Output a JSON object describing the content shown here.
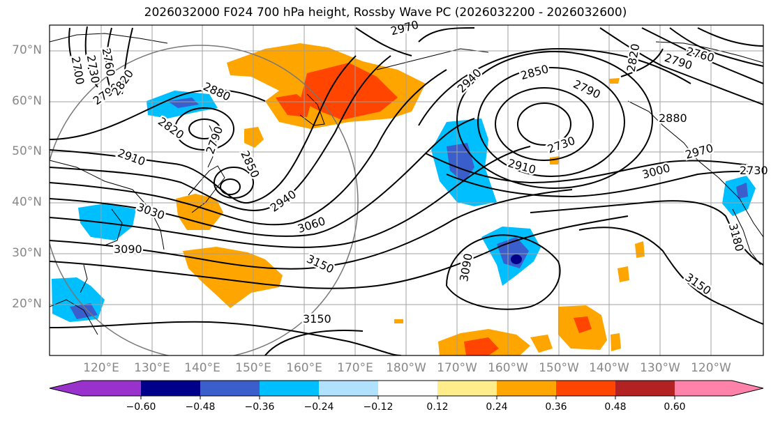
{
  "title": "2026032000 F024 700 hPa height, Rossby Wave PC (2026032200 - 2026032600)",
  "latitude_labels": [
    "70°N",
    "60°N",
    "50°N",
    "40°N",
    "30°N",
    "20°N"
  ],
  "longitude_labels": [
    "120°E",
    "130°E",
    "140°E",
    "150°E",
    "160°E",
    "170°E",
    "180°W",
    "170°W",
    "160°W",
    "150°W",
    "140°W",
    "130°W",
    "120°W"
  ],
  "contour_labels": [
    "2700",
    "2730",
    "2760",
    "2790",
    "2820",
    "2880",
    "2820",
    "2790",
    "2850",
    "2910",
    "2940",
    "3030",
    "3060",
    "3090",
    "3150",
    "3150",
    "2970",
    "2940",
    "2850",
    "2790",
    "2730",
    "2910",
    "2880",
    "3000",
    "2970",
    "3090",
    "3180",
    "3150",
    "2820",
    "2760",
    "2790",
    "2730"
  ],
  "colorbar": {
    "tick_labels": [
      "−0.60",
      "−0.48",
      "−0.36",
      "−0.24",
      "−0.12",
      "0.12",
      "0.24",
      "0.36",
      "0.48",
      "0.60"
    ],
    "colors": [
      "#9932cc",
      "#00008b",
      "#3a5fcd",
      "#00bfff",
      "#b0e2ff",
      "#ffffff",
      "#ffec8b",
      "#ffa500",
      "#ff4500",
      "#b22222",
      "#ff82ab"
    ]
  }
}
